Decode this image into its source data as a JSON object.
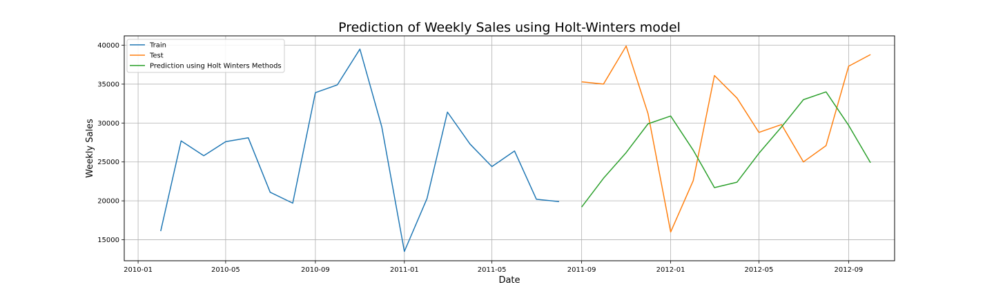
{
  "chart_data": {
    "type": "line",
    "title": "Prediction of Weekly Sales using Holt-Winters model",
    "xlabel": "Date",
    "ylabel": "Weekly Sales",
    "ylim": [
      12300,
      41200
    ],
    "xlim": [
      "2009-12-13",
      "2012-11-03"
    ],
    "grid": true,
    "legend_position": "top-left",
    "x_ticks": [
      {
        "date": "2010-01-01",
        "label": "2010-01"
      },
      {
        "date": "2010-05-01",
        "label": "2010-05"
      },
      {
        "date": "2010-09-01",
        "label": "2010-09"
      },
      {
        "date": "2011-01-01",
        "label": "2011-01"
      },
      {
        "date": "2011-05-01",
        "label": "2011-05"
      },
      {
        "date": "2011-09-01",
        "label": "2011-09"
      },
      {
        "date": "2012-01-01",
        "label": "2012-01"
      },
      {
        "date": "2012-05-01",
        "label": "2012-05"
      },
      {
        "date": "2012-09-01",
        "label": "2012-09"
      }
    ],
    "y_ticks": [
      15000,
      20000,
      25000,
      30000,
      35000,
      40000
    ],
    "series": [
      {
        "name": "Train",
        "color": "#1f77b4",
        "points": [
          [
            "2010-02-01",
            16100
          ],
          [
            "2010-03-01",
            27700
          ],
          [
            "2010-04-01",
            25800
          ],
          [
            "2010-05-01",
            27600
          ],
          [
            "2010-06-01",
            28100
          ],
          [
            "2010-07-01",
            21100
          ],
          [
            "2010-08-01",
            19700
          ],
          [
            "2010-09-01",
            33900
          ],
          [
            "2010-10-01",
            34900
          ],
          [
            "2010-11-01",
            39500
          ],
          [
            "2010-12-01",
            29500
          ],
          [
            "2011-01-01",
            13500
          ],
          [
            "2011-02-01",
            20300
          ],
          [
            "2011-03-01",
            31400
          ],
          [
            "2011-04-01",
            27300
          ],
          [
            "2011-05-01",
            24400
          ],
          [
            "2011-06-01",
            26400
          ],
          [
            "2011-07-01",
            20200
          ],
          [
            "2011-08-01",
            19900
          ]
        ]
      },
      {
        "name": "Test",
        "color": "#ff7f0e",
        "points": [
          [
            "2011-09-01",
            35300
          ],
          [
            "2011-10-01",
            35000
          ],
          [
            "2011-11-01",
            39900
          ],
          [
            "2011-12-01",
            31200
          ],
          [
            "2012-01-01",
            16000
          ],
          [
            "2012-02-01",
            22600
          ],
          [
            "2012-03-01",
            36100
          ],
          [
            "2012-04-01",
            33200
          ],
          [
            "2012-05-01",
            28800
          ],
          [
            "2012-06-01",
            29800
          ],
          [
            "2012-07-01",
            25000
          ],
          [
            "2012-08-01",
            27100
          ],
          [
            "2012-09-01",
            37300
          ],
          [
            "2012-10-01",
            38800
          ]
        ]
      },
      {
        "name": "Prediction using Holt Winters Methods",
        "color": "#2ca02c",
        "points": [
          [
            "2011-09-01",
            19200
          ],
          [
            "2011-10-01",
            22900
          ],
          [
            "2011-11-01",
            26200
          ],
          [
            "2011-12-01",
            29900
          ],
          [
            "2012-01-01",
            30900
          ],
          [
            "2012-02-01",
            26500
          ],
          [
            "2012-03-01",
            21700
          ],
          [
            "2012-04-01",
            22400
          ],
          [
            "2012-05-01",
            26100
          ],
          [
            "2012-06-01",
            29500
          ],
          [
            "2012-07-01",
            33000
          ],
          [
            "2012-08-01",
            34000
          ],
          [
            "2012-09-01",
            29700
          ],
          [
            "2012-10-01",
            24900
          ]
        ]
      }
    ]
  }
}
